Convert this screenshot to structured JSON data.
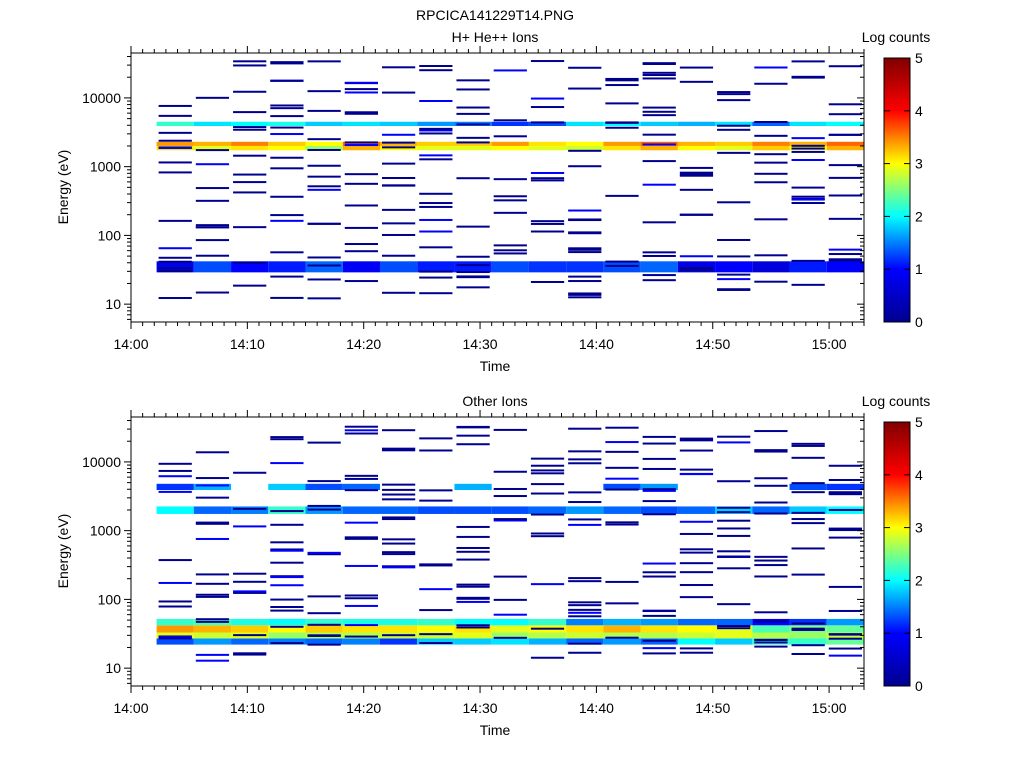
{
  "figure": {
    "title": "RPCICA141229T14.PNG"
  },
  "colors": {
    "jet": [
      "#00008f",
      "#0000ff",
      "#00ffff",
      "#ffff00",
      "#ff0000",
      "#800000"
    ],
    "axis": "#000000",
    "background": "#ffffff"
  },
  "chart_data": [
    {
      "type": "heatmap",
      "title": "H+ He++ Ions",
      "xlabel": "Time",
      "ylabel": "Energy (eV)",
      "yscale": "log",
      "xlim": [
        "14:00",
        "15:03"
      ],
      "ylim": [
        5.5,
        45000
      ],
      "xticks": [
        "14:00",
        "14:10",
        "14:20",
        "14:30",
        "14:40",
        "14:50",
        "15:00"
      ],
      "yticks": [
        "10",
        "100",
        "1000",
        "10000"
      ],
      "colorbar": {
        "label": "Log counts",
        "ticks": [
          "0",
          "1",
          "2",
          "3",
          "4",
          "5"
        ],
        "range": [
          0,
          5
        ]
      },
      "time_bins_min": [
        2.2,
        5.4,
        8.6,
        11.8,
        15.0,
        18.2,
        21.4,
        24.6,
        27.8,
        31.0,
        34.2,
        37.4,
        40.6,
        43.8,
        47.0,
        50.2,
        53.4,
        56.6,
        59.8,
        63.0
      ],
      "bands": [
        {
          "e_lo": 29,
          "e_hi": 42,
          "levels": [
            0.8,
            1.3,
            1.0,
            1.1,
            1.4,
            0.9,
            1.3,
            1.1,
            1.1,
            1.3,
            1.2,
            1.2,
            1.3,
            1.4,
            0.8,
            1.0,
            0.7,
            1.1,
            1.0
          ]
        },
        {
          "e_lo": 1730,
          "e_hi": 2000,
          "levels": [
            3.1,
            2.9,
            3.1,
            3.0,
            2.6,
            3.3,
            3.0,
            2.9,
            2.9,
            3.0,
            2.9,
            2.8,
            3.1,
            3.3,
            3.0,
            2.9,
            3.2,
            3.0,
            3.3
          ]
        },
        {
          "e_lo": 2000,
          "e_hi": 2300,
          "levels": [
            3.4,
            3.3,
            3.5,
            3.2,
            3.0,
            3.6,
            3.3,
            3.2,
            3.2,
            3.4,
            3.1,
            3.0,
            3.4,
            3.6,
            3.3,
            3.2,
            3.5,
            3.3,
            3.6
          ]
        },
        {
          "e_lo": 3900,
          "e_hi": 4500,
          "levels": [
            2.2,
            1.9,
            2.0,
            2.1,
            1.8,
            1.9,
            1.8,
            1.6,
            1.5,
            1.2,
            1.3,
            1.9,
            2.0,
            1.8,
            1.7,
            1.9,
            1.4,
            1.9,
            2.0
          ]
        }
      ]
    },
    {
      "type": "heatmap",
      "title": "Other Ions",
      "xlabel": "Time",
      "ylabel": "Energy (eV)",
      "yscale": "log",
      "xlim": [
        "14:00",
        "15:03"
      ],
      "ylim": [
        5.5,
        45000
      ],
      "xticks": [
        "14:00",
        "14:10",
        "14:20",
        "14:30",
        "14:40",
        "14:50",
        "15:00"
      ],
      "yticks": [
        "10",
        "100",
        "1000",
        "10000"
      ],
      "colorbar": {
        "label": "Log counts",
        "ticks": [
          "0",
          "1",
          "2",
          "3",
          "4",
          "5"
        ],
        "range": [
          0,
          5
        ]
      },
      "time_bins_min": [
        2.2,
        5.4,
        8.6,
        11.8,
        15.0,
        18.2,
        21.4,
        24.6,
        27.8,
        31.0,
        34.2,
        37.4,
        40.6,
        43.8,
        47.0,
        50.2,
        53.4,
        56.6,
        59.8,
        63.0
      ],
      "bands": [
        {
          "e_lo": 22,
          "e_hi": 27,
          "levels": [
            1.3,
            1.6,
            1.4,
            1.5,
            1.4,
            1.5,
            1.2,
            1.8,
            1.8,
            1.9,
            1.7,
            1.4,
            1.6,
            1.4,
            2.0,
            1.8,
            2.2,
            2.2,
            2.4
          ]
        },
        {
          "e_lo": 27,
          "e_hi": 33,
          "levels": [
            2.9,
            2.8,
            2.9,
            2.6,
            2.7,
            2.7,
            2.8,
            2.8,
            2.9,
            2.6,
            2.7,
            2.8,
            2.7,
            2.7,
            2.8,
            2.9,
            2.7,
            2.6,
            2.8
          ]
        },
        {
          "e_lo": 33,
          "e_hi": 42,
          "levels": [
            3.4,
            3.3,
            3.2,
            3.0,
            3.2,
            3.1,
            3.1,
            3.0,
            3.1,
            2.9,
            3.0,
            3.1,
            3.3,
            3.1,
            3.0,
            2.9,
            2.3,
            2.5,
            2.4
          ]
        },
        {
          "e_lo": 42,
          "e_hi": 52,
          "levels": [
            2.2,
            2.3,
            2.1,
            2.0,
            2.2,
            2.1,
            2.1,
            2.2,
            2.0,
            2.0,
            2.2,
            1.5,
            1.7,
            1.6,
            1.4,
            1.4,
            1.0,
            1.2,
            1.6
          ]
        },
        {
          "e_lo": 1750,
          "e_hi": 2250,
          "levels": [
            2.0,
            1.4,
            1.5,
            2.2,
            1.6,
            1.4,
            1.4,
            1.3,
            1.3,
            1.3,
            1.4,
            1.6,
            1.4,
            1.3,
            1.4,
            1.8,
            1.4,
            1.8,
            2.0
          ]
        },
        {
          "e_lo": 3900,
          "e_hi": 4800,
          "levels": [
            1.2,
            1.7,
            0,
            1.8,
            1.3,
            1.4,
            0,
            0,
            1.7,
            0,
            0,
            0,
            1.3,
            1.6,
            0,
            0,
            0,
            1.3,
            1.2
          ]
        }
      ]
    }
  ]
}
